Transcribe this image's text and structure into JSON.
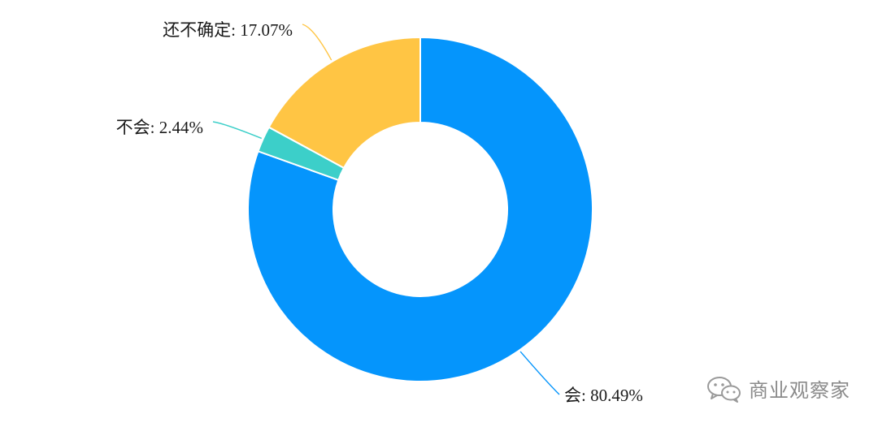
{
  "chart_data": {
    "type": "pie",
    "donut": true,
    "slices": [
      {
        "category": "会",
        "value": 80.49,
        "label": "会: 80.49%",
        "color": "#0595FC"
      },
      {
        "category": "不会",
        "value": 2.44,
        "label": "不会: 2.44%",
        "color": "#3CCFC9"
      },
      {
        "category": "还不确定",
        "value": 17.07,
        "label": "还不确定: 17.07%",
        "color": "#FFC544"
      }
    ],
    "start_angle_deg": 0,
    "direction": "clockwise"
  },
  "watermark": {
    "text": "商业观察家",
    "icon": "wechat-icon"
  }
}
